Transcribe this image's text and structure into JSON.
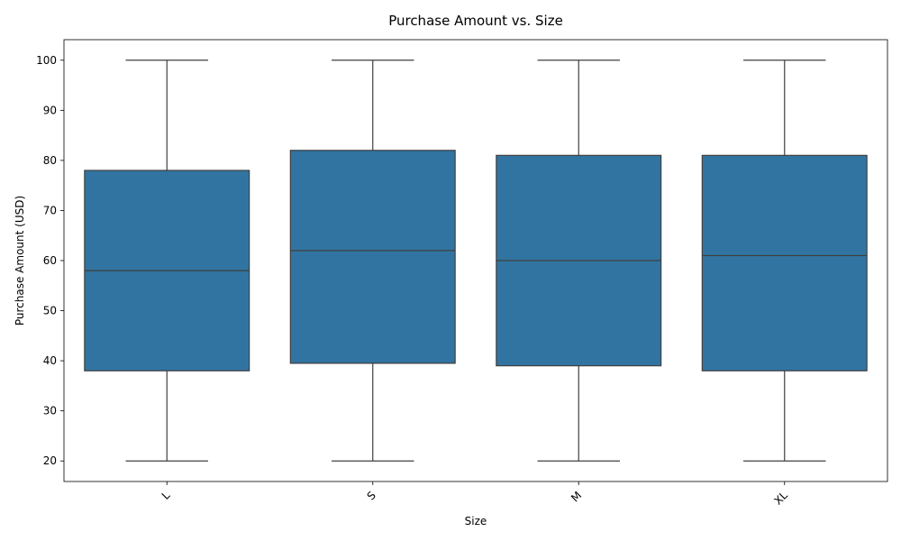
{
  "chart_data": {
    "type": "box",
    "title": "Purchase Amount vs. Size",
    "xlabel": "Size",
    "ylabel": "Purchase Amount (USD)",
    "ylim": [
      15.9,
      104.1
    ],
    "yticks": [
      20,
      30,
      40,
      50,
      60,
      70,
      80,
      90,
      100
    ],
    "grid": false,
    "box_color": "#3274a1",
    "line_color": "#3f3f3f",
    "categories": [
      "L",
      "S",
      "M",
      "XL"
    ],
    "boxes": [
      {
        "category": "L",
        "min": 20,
        "q1": 38,
        "median": 58,
        "q3": 78,
        "max": 100
      },
      {
        "category": "S",
        "min": 20,
        "q1": 39.5,
        "median": 62,
        "q3": 82,
        "max": 100
      },
      {
        "category": "M",
        "min": 20,
        "q1": 39,
        "median": 60,
        "q3": 81,
        "max": 100
      },
      {
        "category": "XL",
        "min": 20,
        "q1": 38,
        "median": 61,
        "q3": 81,
        "max": 100
      }
    ]
  }
}
